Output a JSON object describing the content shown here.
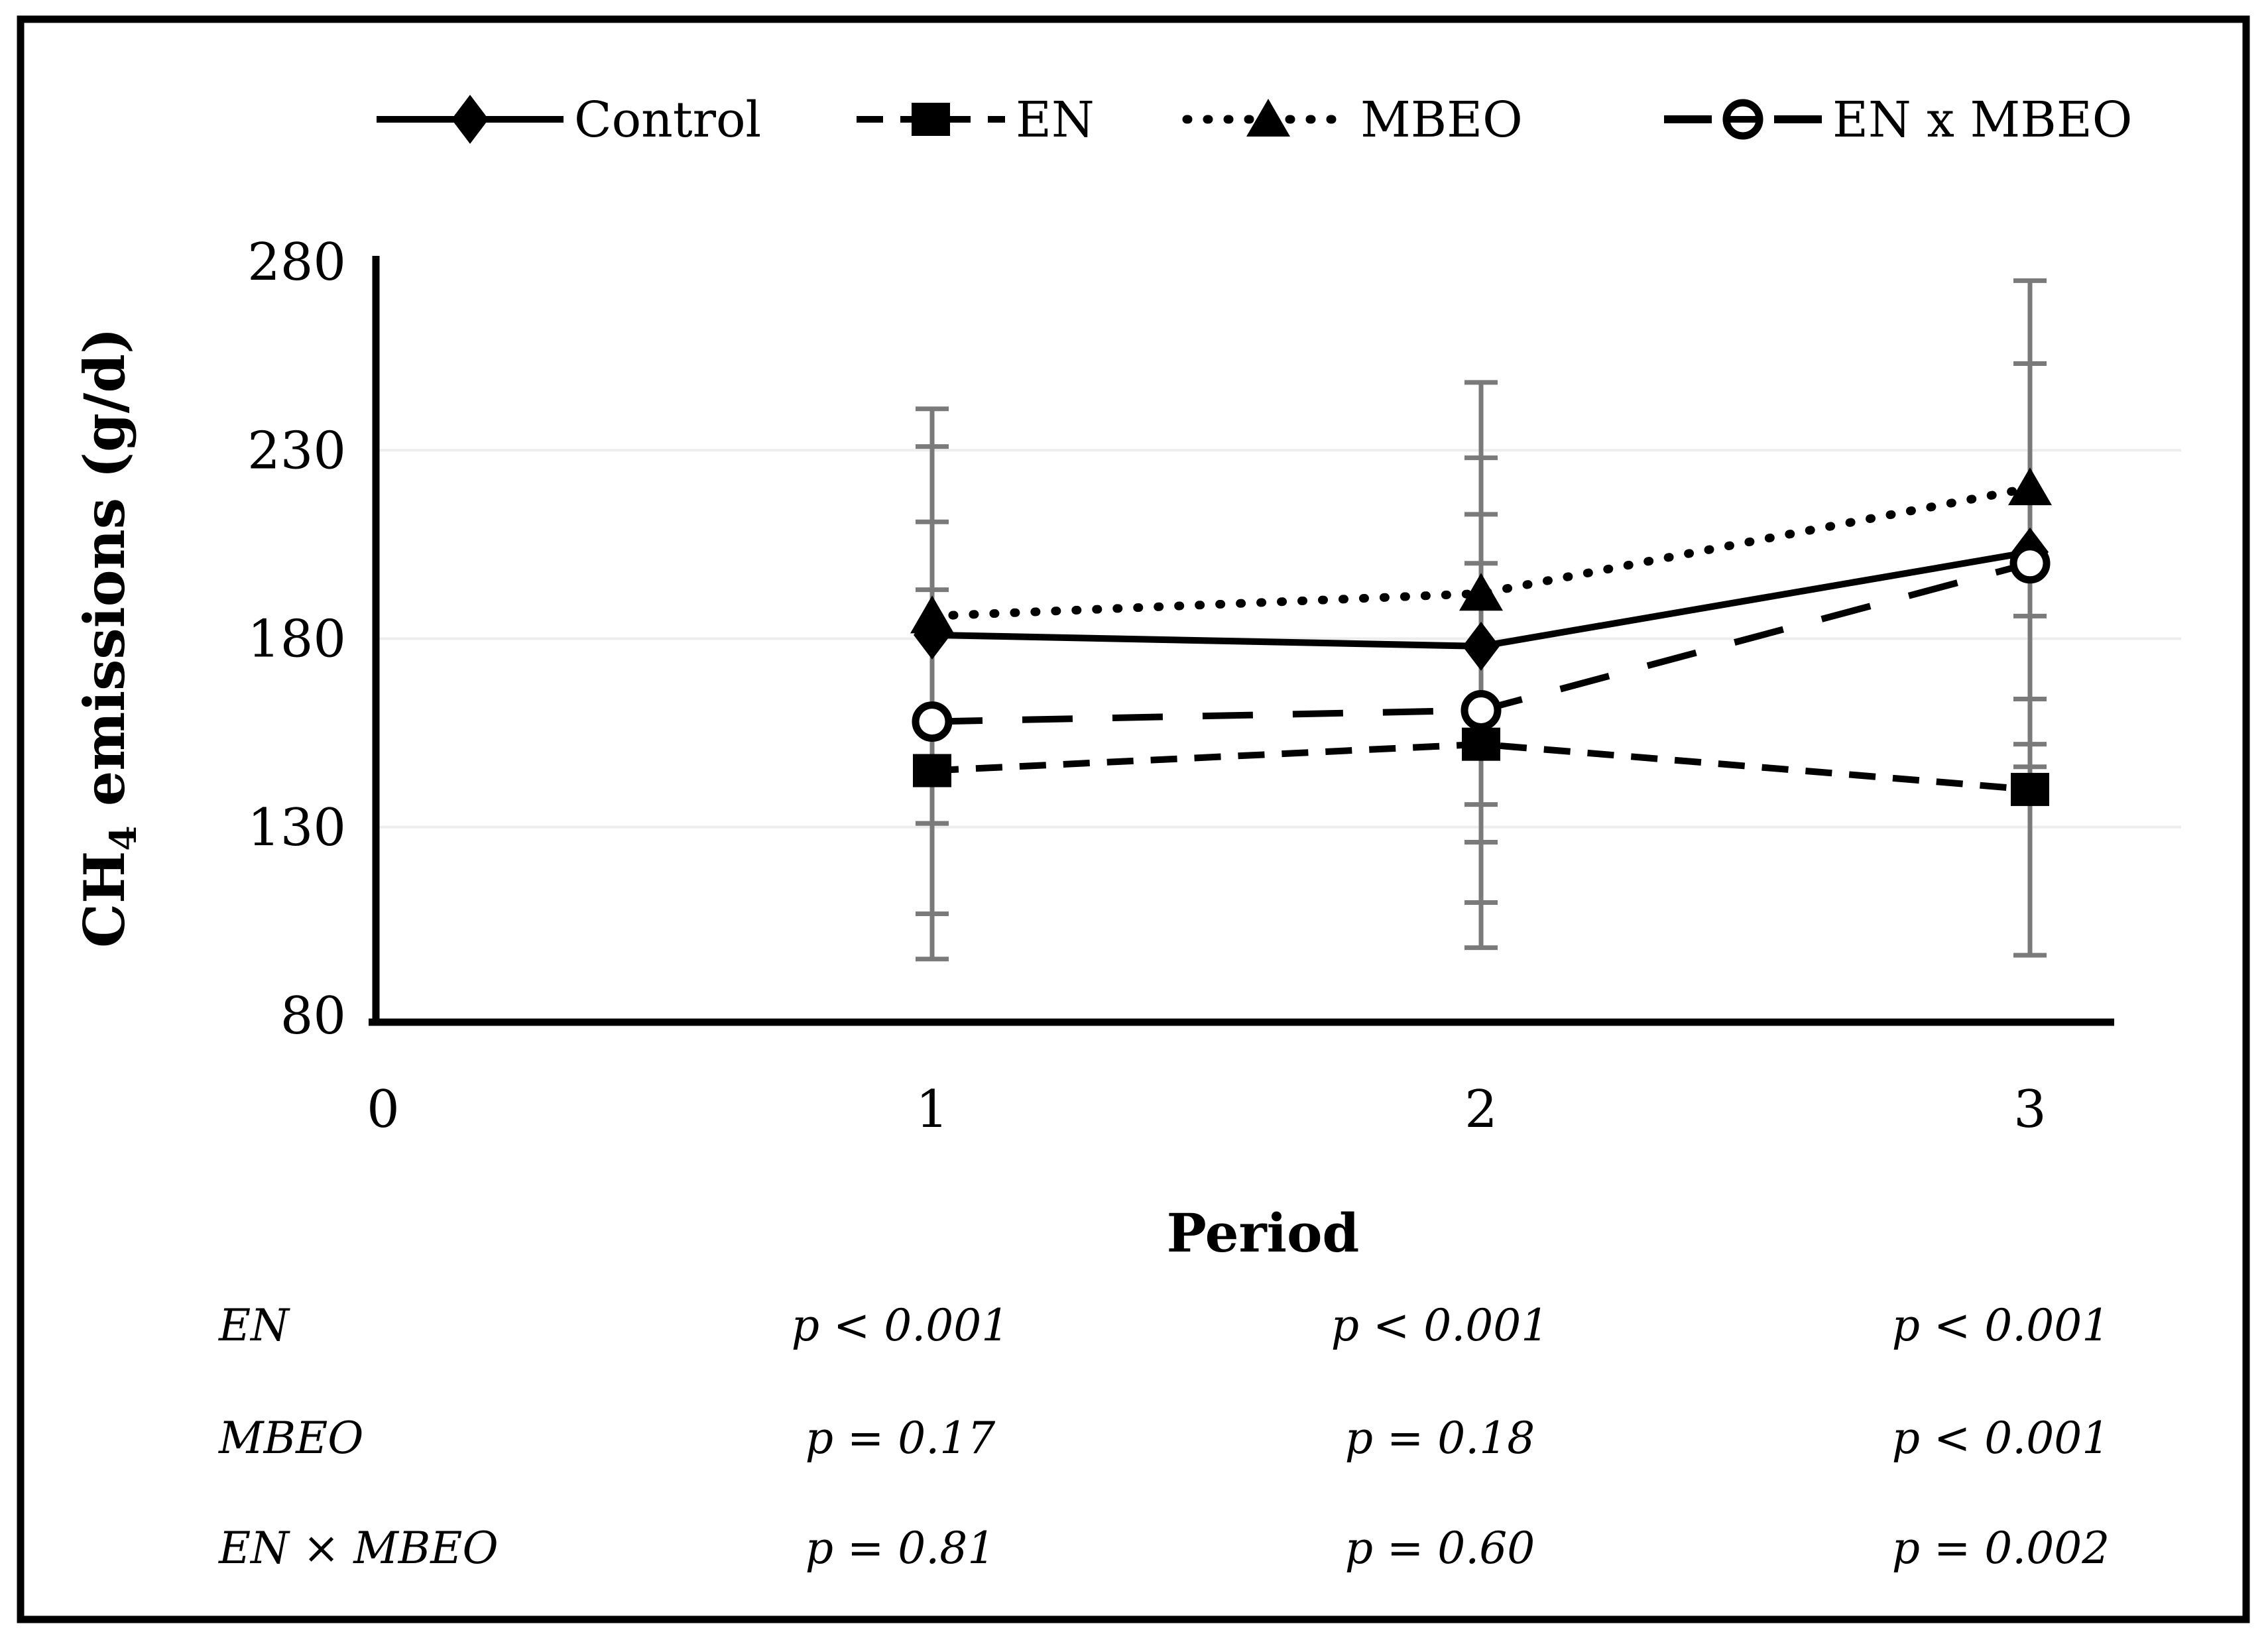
{
  "figure": {
    "background": "#ffffff",
    "border_color": "#000000"
  },
  "chart_data": {
    "type": "line",
    "title": "",
    "xlabel": "Period",
    "ylabel": "CH4 emissions (g/d)",
    "ylabel_parts": {
      "pre": "CH",
      "sub": "4",
      "post": " emissions (g/d)"
    },
    "x": [
      1,
      2,
      3
    ],
    "x_ticks": [
      "0",
      "1",
      "2",
      "3"
    ],
    "y_ticks": [
      "280",
      "230",
      "180",
      "130",
      "80"
    ],
    "ylim": [
      80,
      280
    ],
    "xlim": [
      0,
      3.28
    ],
    "grid_y": [
      230,
      180,
      130
    ],
    "grid_on": true,
    "grid_color": "#ededed",
    "axis_color": "#000000",
    "error_bar_color": "#7a7a7a",
    "legend_position": "top",
    "series": [
      {
        "name": "Control",
        "marker": "filled-diamond",
        "line_style": "solid",
        "color": "#000000",
        "values": [
          181,
          178,
          203
        ],
        "err_low": [
          131,
          126,
          152
        ],
        "err_high": [
          231,
          228,
          253
        ]
      },
      {
        "name": "EN",
        "marker": "filled-square",
        "line_style": "dashed",
        "color": "#000000",
        "values": [
          145,
          152,
          140
        ],
        "err_low": [
          95,
          98,
          96
        ],
        "err_high": [
          193,
          200,
          186
        ]
      },
      {
        "name": "MBEO",
        "marker": "filled-triangle",
        "line_style": "dotted",
        "color": "#000000",
        "values": [
          186,
          192,
          220
        ],
        "err_low": [
          131,
          136,
          164
        ],
        "err_high": [
          241,
          248,
          275
        ]
      },
      {
        "name": "EN x MBEO",
        "marker": "open-circle",
        "line_style": "long-dash",
        "color": "#000000",
        "values": [
          158,
          161,
          200
        ],
        "err_low": [
          107,
          110,
          146
        ],
        "err_high": [
          211,
          213,
          253
        ]
      }
    ]
  },
  "p_table": {
    "rows": [
      {
        "label": "EN",
        "values": [
          "p < 0.001",
          "p < 0.001",
          "p < 0.001"
        ]
      },
      {
        "label": "MBEO",
        "values": [
          "p = 0.17",
          "p = 0.18",
          "p < 0.001"
        ]
      },
      {
        "label": "EN × MBEO",
        "values": [
          "p = 0.81",
          "p = 0.60",
          "p = 0.002"
        ]
      }
    ]
  }
}
